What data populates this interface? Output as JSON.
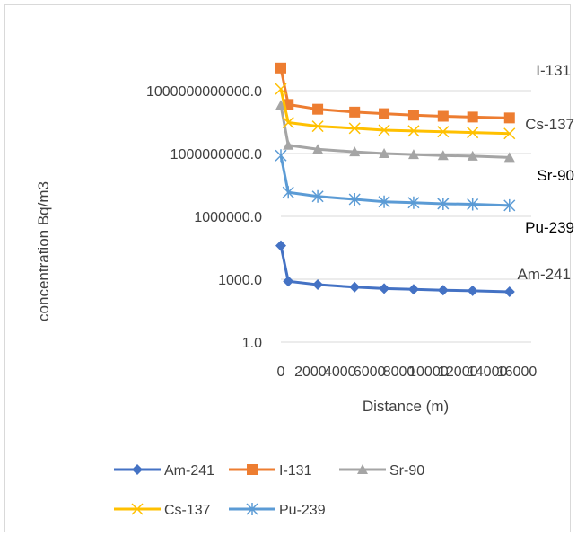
{
  "chart_data": {
    "type": "line",
    "title": "",
    "xlabel": "Distance (m)",
    "ylabel": "concentration Bq/m3",
    "y_scale": "log",
    "ylim": [
      1,
      1000000000000000
    ],
    "xlim": [
      0,
      16000
    ],
    "y_tick_values": [
      1,
      1000,
      1000000,
      1000000000,
      1000000000000
    ],
    "y_tick_labels": [
      "1.0",
      "1000.0",
      "1000000.0",
      "1000000000.0",
      "1000000000000.0"
    ],
    "x_tick_values": [
      0,
      2000,
      4000,
      6000,
      8000,
      10000,
      12000,
      14000,
      16000
    ],
    "x_tick_labels": [
      "0",
      "2000",
      "4000",
      "6000",
      "8000",
      "10000",
      "12000",
      "14000",
      "16000"
    ],
    "grid": "horizontal",
    "legend_position": "bottom",
    "x": [
      0,
      500,
      2500,
      5000,
      7000,
      9000,
      11000,
      13000,
      15500
    ],
    "series": [
      {
        "name": "Am-241",
        "color": "#4472c4",
        "marker": "diamond",
        "end_label": "Am-241",
        "end_label_color": "#404040",
        "values": [
          40000,
          800,
          550,
          420,
          360,
          330,
          300,
          280,
          250
        ]
      },
      {
        "name": "I-131",
        "color": "#ed7d31",
        "marker": "square",
        "end_label": "I-131",
        "end_label_color": "#404040",
        "values": [
          12000000000000,
          220000000000,
          130000000000,
          95000000000,
          80000000000,
          68000000000,
          60000000000,
          55000000000,
          50000000000
        ]
      },
      {
        "name": "Sr-90",
        "color": "#a5a5a5",
        "marker": "triangle",
        "end_label": "Sr-90",
        "end_label_color": "#000000",
        "values": [
          200000000000,
          2500000000,
          1600000000,
          1200000000,
          1000000000,
          900000000,
          800000000,
          750000000,
          650000000
        ]
      },
      {
        "name": "Cs-137",
        "color": "#ffc000",
        "marker": "x",
        "end_label": "Cs-137",
        "end_label_color": "#404040",
        "values": [
          1200000000000,
          30000000000,
          20000000000,
          16000000000,
          13000000000,
          12000000000,
          11000000000,
          10000000000,
          9000000000
        ]
      },
      {
        "name": "Pu-239",
        "color": "#5b9bd5",
        "marker": "asterisk",
        "end_label": "Pu-239",
        "end_label_color": "#000000",
        "values": [
          800000000,
          14000000,
          9000000,
          6500000,
          5000000,
          4500000,
          4000000,
          3800000,
          3300000
        ]
      }
    ]
  }
}
